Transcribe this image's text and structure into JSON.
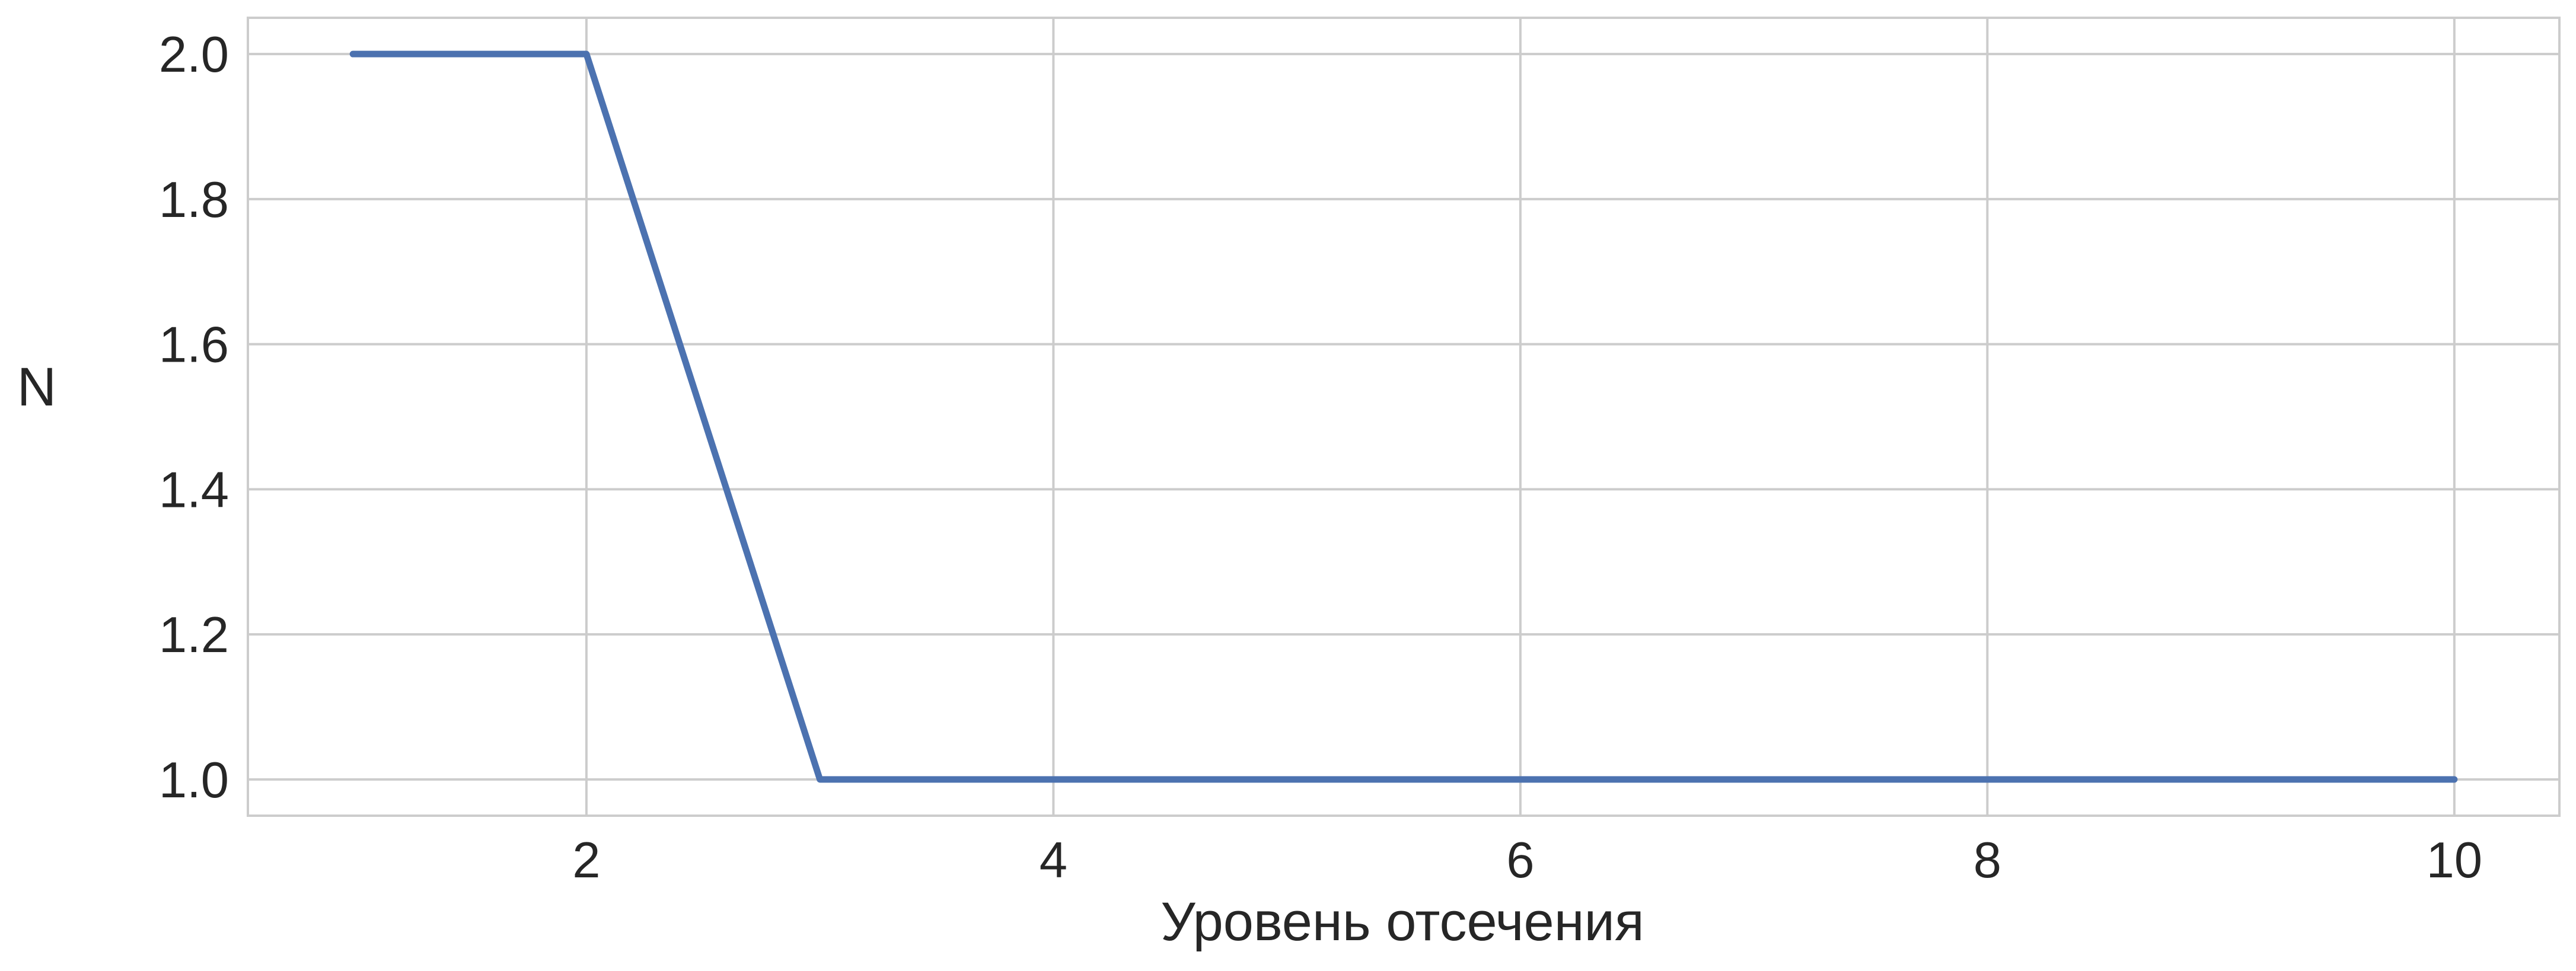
{
  "chart_data": {
    "type": "line",
    "title": "",
    "xlabel": "Уровень отсечения",
    "ylabel": "N",
    "xlim": [
      0.55,
      10.45
    ],
    "ylim": [
      0.95,
      2.05
    ],
    "xticks": [
      2,
      4,
      6,
      8,
      10
    ],
    "xtick_labels": [
      "2",
      "4",
      "6",
      "8",
      "10"
    ],
    "yticks": [
      1.0,
      1.2,
      1.4,
      1.6,
      1.8,
      2.0
    ],
    "ytick_labels": [
      "1.0",
      "1.2",
      "1.4",
      "1.6",
      "1.8",
      "2.0"
    ],
    "grid": true,
    "legend": "none",
    "series": [
      {
        "x": [
          1,
          2,
          3,
          4,
          5,
          6,
          7,
          8,
          9,
          10
        ],
        "values": [
          2,
          2,
          1,
          1,
          1,
          1,
          1,
          1,
          1,
          1
        ],
        "color": "#4c72b0"
      }
    ]
  }
}
